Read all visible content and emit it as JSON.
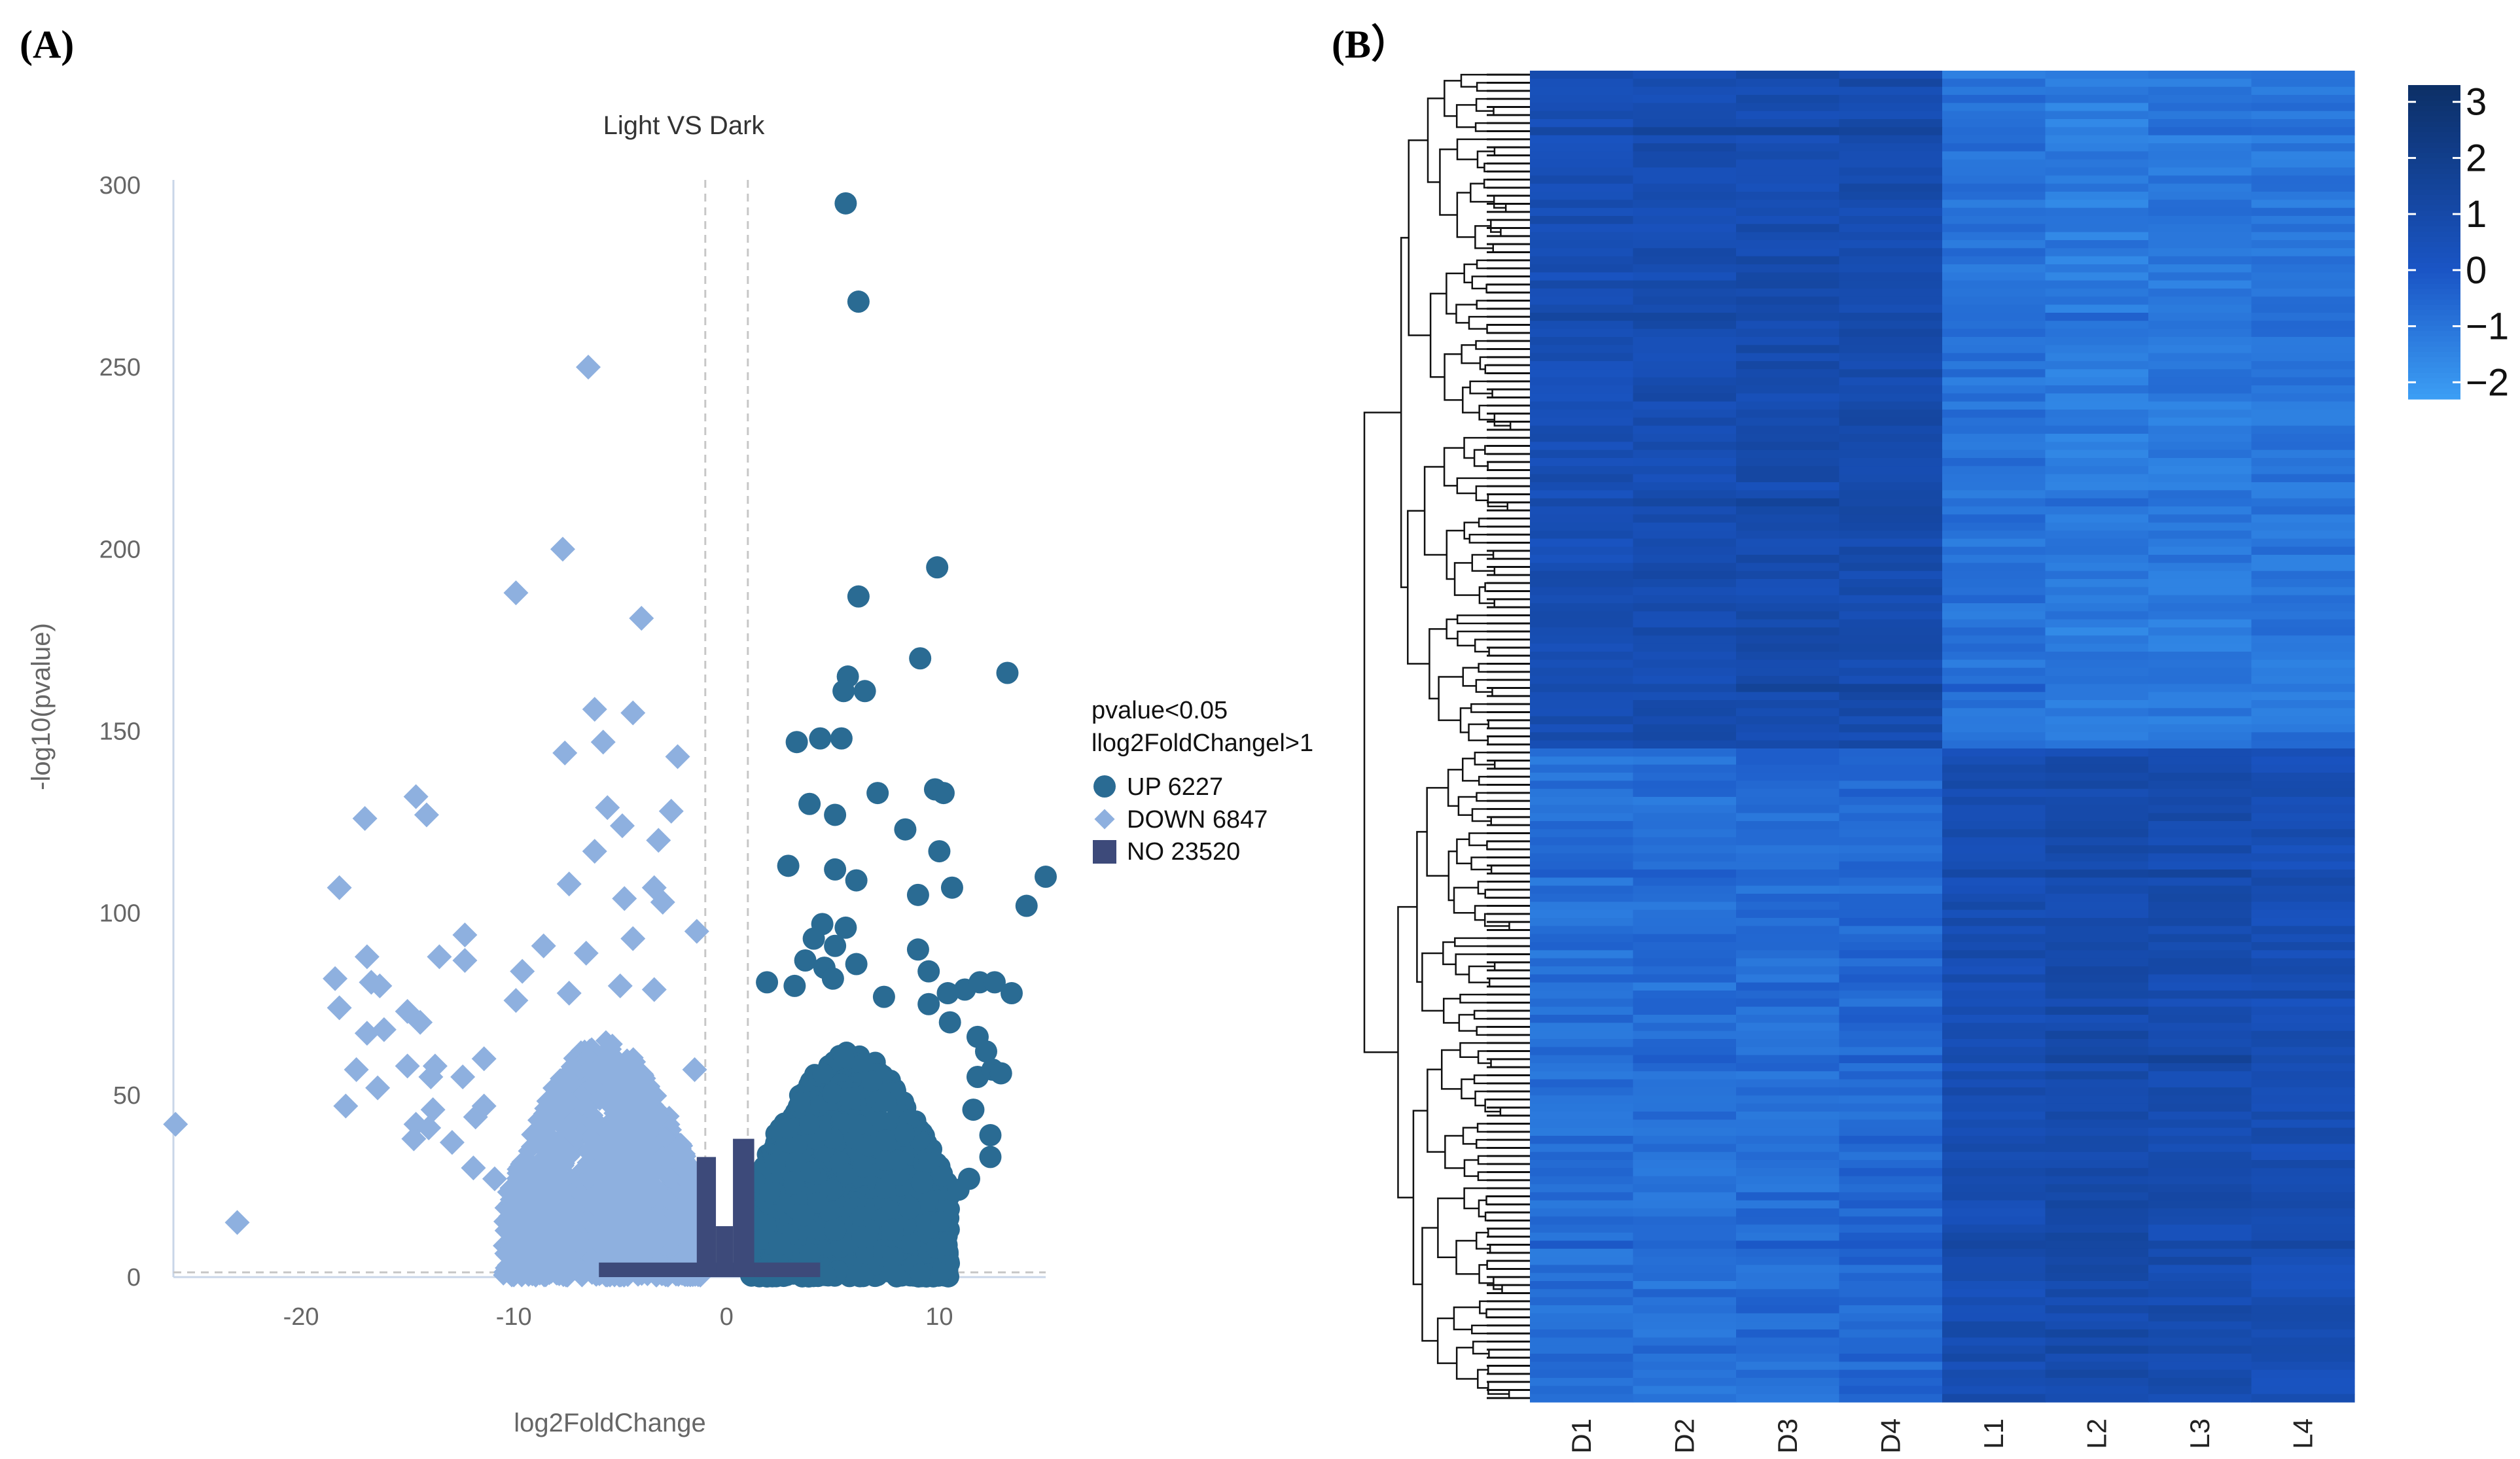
{
  "figure": {
    "panel_a_label": "(A)",
    "panel_b_label": "(B）"
  },
  "chart_data": [
    {
      "type": "scatter",
      "title": "Light VS Dark",
      "xlabel": "log2FoldChange",
      "ylabel": "-log10(pvalue)",
      "xlim": [
        -26,
        15
      ],
      "ylim": [
        0,
        300
      ],
      "x_ticks": [
        -20,
        -10,
        0,
        10
      ],
      "y_ticks": [
        0,
        50,
        100,
        150,
        200,
        250,
        300
      ],
      "thresholds": {
        "log2fc": [
          -1,
          1
        ],
        "pvalue_line": 1.3
      },
      "legend": {
        "title_line1": "pvalue<0.05",
        "title_line2": "llog2FoldChangel>1",
        "position": "right"
      },
      "series": [
        {
          "name": "UP 6227",
          "marker": "circle",
          "color": "#2a6b93",
          "points": [
            [
              5.6,
              295
            ],
            [
              6.2,
              268
            ],
            [
              9.9,
              195
            ],
            [
              6.2,
              187
            ],
            [
              5.7,
              165
            ],
            [
              9.1,
              170
            ],
            [
              13.2,
              166
            ],
            [
              5.5,
              161
            ],
            [
              6.5,
              161
            ],
            [
              3.3,
              147
            ],
            [
              4.4,
              148
            ],
            [
              5.4,
              148
            ],
            [
              7.1,
              133
            ],
            [
              9.8,
              134
            ],
            [
              10.2,
              133
            ],
            [
              3.9,
              130
            ],
            [
              5.1,
              127
            ],
            [
              8.4,
              123
            ],
            [
              10.0,
              117
            ],
            [
              2.9,
              113
            ],
            [
              5.1,
              112
            ],
            [
              6.1,
              109
            ],
            [
              9.0,
              105
            ],
            [
              10.6,
              107
            ],
            [
              14.1,
              102
            ],
            [
              15.0,
              110
            ],
            [
              4.5,
              97
            ],
            [
              5.6,
              96
            ],
            [
              4.1,
              93
            ],
            [
              5.1,
              91
            ],
            [
              9.0,
              90
            ],
            [
              3.7,
              87
            ],
            [
              4.6,
              85
            ],
            [
              6.1,
              86
            ],
            [
              9.5,
              84
            ],
            [
              1.9,
              81
            ],
            [
              3.2,
              80
            ],
            [
              11.2,
              79
            ],
            [
              11.9,
              81
            ],
            [
              12.6,
              81
            ],
            [
              13.4,
              78
            ],
            [
              5.0,
              82
            ],
            [
              7.4,
              77
            ],
            [
              9.5,
              75
            ],
            [
              10.4,
              78
            ],
            [
              10.5,
              70
            ],
            [
              11.8,
              66
            ],
            [
              12.2,
              62
            ],
            [
              11.8,
              55
            ],
            [
              12.5,
              57
            ],
            [
              12.9,
              56
            ],
            [
              11.6,
              46
            ],
            [
              12.4,
              39
            ],
            [
              12.4,
              33
            ],
            [
              11.4,
              27
            ],
            [
              10.9,
              24
            ],
            [
              9.2,
              26
            ],
            [
              8.6,
              19
            ],
            [
              7.8,
              13
            ],
            [
              3.6,
              17
            ],
            [
              5.1,
              13
            ],
            [
              6.4,
              11
            ],
            [
              2.5,
              9
            ]
          ],
          "cluster": {
            "x_range": [
              1.1,
              10.5
            ],
            "y_range": [
              0,
              62
            ]
          }
        },
        {
          "name": "DOWN 6847",
          "marker": "diamond",
          "color": "#8eb0df",
          "points": [
            [
              -6.5,
              250
            ],
            [
              -7.7,
              200
            ],
            [
              -4.0,
              181
            ],
            [
              -9.9,
              188
            ],
            [
              -6.2,
              156
            ],
            [
              -4.4,
              155
            ],
            [
              -5.8,
              147
            ],
            [
              -7.6,
              144
            ],
            [
              -2.3,
              143
            ],
            [
              -14.6,
              132
            ],
            [
              -17.0,
              126
            ],
            [
              -14.1,
              127
            ],
            [
              -5.6,
              129
            ],
            [
              -4.9,
              124
            ],
            [
              -2.6,
              128
            ],
            [
              -6.2,
              117
            ],
            [
              -3.2,
              120
            ],
            [
              -18.2,
              107
            ],
            [
              -7.4,
              108
            ],
            [
              -3.4,
              107
            ],
            [
              -3.0,
              103
            ],
            [
              -4.8,
              104
            ],
            [
              -12.3,
              94
            ],
            [
              -16.9,
              88
            ],
            [
              -18.4,
              82
            ],
            [
              -16.3,
              80
            ],
            [
              -16.7,
              81
            ],
            [
              -13.5,
              88
            ],
            [
              -12.3,
              87
            ],
            [
              -8.6,
              91
            ],
            [
              -6.6,
              89
            ],
            [
              -4.4,
              93
            ],
            [
              -1.4,
              95
            ],
            [
              -9.6,
              84
            ],
            [
              -18.2,
              74
            ],
            [
              -16.1,
              68
            ],
            [
              -16.9,
              67
            ],
            [
              -15.0,
              73
            ],
            [
              -14.4,
              70
            ],
            [
              -9.9,
              76
            ],
            [
              -7.4,
              78
            ],
            [
              -5.0,
              80
            ],
            [
              -3.4,
              79
            ],
            [
              -17.4,
              57
            ],
            [
              -16.4,
              52
            ],
            [
              -15.0,
              58
            ],
            [
              -13.7,
              58
            ],
            [
              -13.9,
              55
            ],
            [
              -12.4,
              55
            ],
            [
              -11.4,
              60
            ],
            [
              -1.5,
              57
            ],
            [
              -17.9,
              47
            ],
            [
              -13.8,
              46
            ],
            [
              -11.4,
              47
            ],
            [
              -14.6,
              42
            ],
            [
              -14.0,
              41
            ],
            [
              -11.8,
              44
            ],
            [
              -14.7,
              38
            ],
            [
              -12.9,
              37
            ],
            [
              -25.9,
              42
            ],
            [
              -23.0,
              15
            ],
            [
              -11.9,
              30
            ],
            [
              -10.9,
              27
            ],
            [
              -9.4,
              24
            ],
            [
              -8.0,
              17
            ],
            [
              -7.0,
              10
            ]
          ],
          "cluster": {
            "x_range": [
              -10.5,
              -1.1
            ],
            "y_range": [
              0,
              65
            ]
          }
        },
        {
          "name": "NO 23520",
          "marker": "square",
          "color": "#3d4a7a",
          "bars": [
            {
              "x0": -6.0,
              "x1": 4.4,
              "y1": 4
            },
            {
              "x0": -1.4,
              "x1": -0.5,
              "y1": 33
            },
            {
              "x0": -0.5,
              "x1": 0.3,
              "y1": 14
            },
            {
              "x0": 0.3,
              "x1": 1.3,
              "y1": 38
            }
          ]
        }
      ]
    },
    {
      "type": "heatmap",
      "columns": [
        "D1",
        "D2",
        "D3",
        "D4",
        "L1",
        "L2",
        "L3",
        "L4"
      ],
      "color_scale": {
        "ticks": [
          "3",
          "2",
          "1",
          "0",
          "−1",
          "−2"
        ],
        "range": [
          -2.3,
          3.3
        ],
        "low_color": "#3c9ff5",
        "mid_color": "#1a55c5",
        "high_color": "#0c2f66"
      },
      "n_rows": 165,
      "cluster_split_fraction": 0.51,
      "block_levels": {
        "top_block": [
          0.6,
          0.75,
          0.8,
          0.85,
          -0.9,
          -1.2,
          -1.1,
          -1.0
        ],
        "bottom_block": [
          -0.8,
          -0.8,
          -0.7,
          -0.6,
          0.7,
          0.9,
          0.8,
          0.6
        ]
      }
    }
  ]
}
